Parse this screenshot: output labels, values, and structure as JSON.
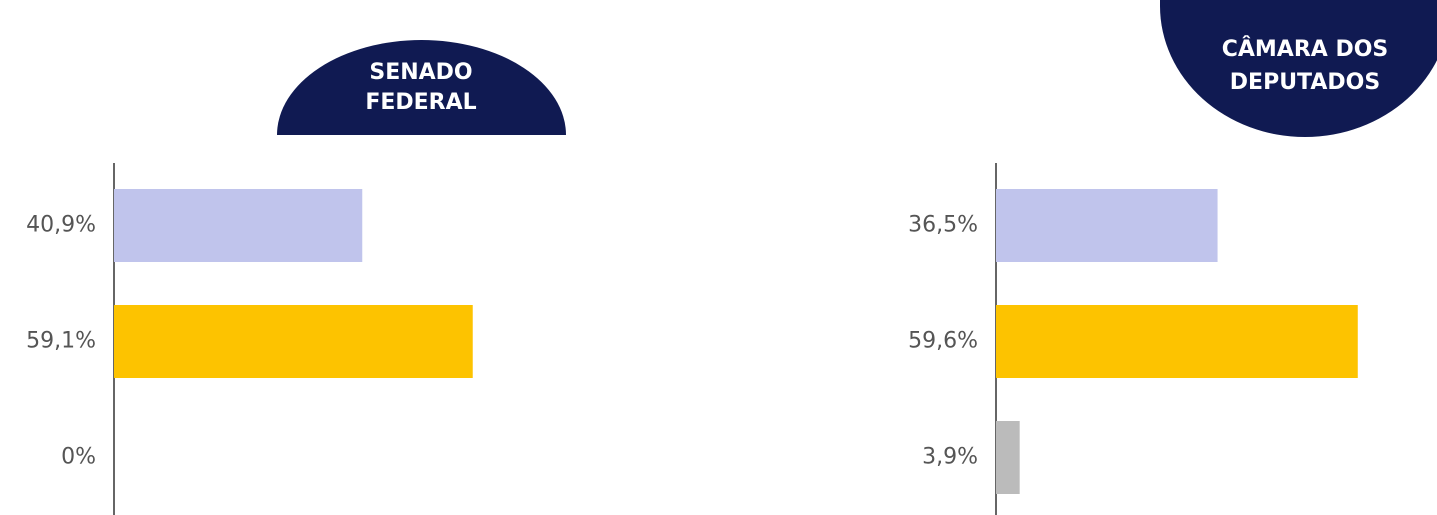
{
  "chart_data": [
    {
      "type": "bar",
      "orientation": "horizontal",
      "title": [
        "SENADO",
        "FEDERAL"
      ],
      "categories": [
        null,
        null,
        null
      ],
      "values": [
        40.9,
        59.1,
        0
      ],
      "value_labels": [
        "40,9%",
        "59,1%",
        "0%"
      ],
      "colors": [
        "#c0c4ec",
        "#fdc300",
        "#bbbbbb"
      ]
    },
    {
      "type": "bar",
      "orientation": "horizontal",
      "title": [
        "CÂMARA DOS",
        "DEPUTADOS"
      ],
      "categories": [
        null,
        null,
        null
      ],
      "values": [
        36.5,
        59.6,
        3.9
      ],
      "value_labels": [
        "36,5%",
        "59,6%",
        "3,9%"
      ],
      "colors": [
        "#c0c4ec",
        "#fdc300",
        "#bbbbbb"
      ]
    }
  ]
}
